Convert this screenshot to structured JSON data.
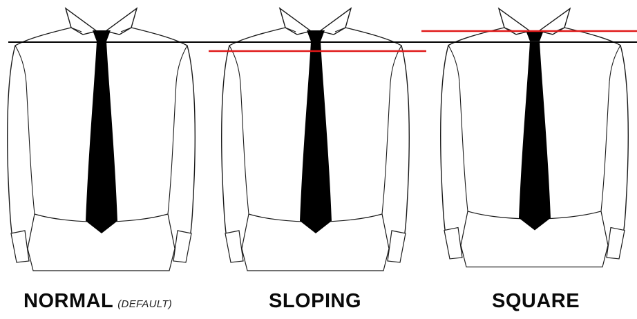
{
  "shirts": [
    {
      "id": "normal",
      "label": "NORMAL",
      "note": "(DEFAULT)",
      "shoulder": "normal"
    },
    {
      "id": "sloping",
      "label": "SLOPING",
      "note": "",
      "shoulder": "sloping"
    },
    {
      "id": "square",
      "label": "SQUARE",
      "note": "",
      "shoulder": "square"
    }
  ],
  "colors": {
    "outline": "#1a1a1a",
    "tie": "#000000",
    "reference_line": "#000000",
    "shoulder_line": "#e01818",
    "background": "#ffffff"
  }
}
